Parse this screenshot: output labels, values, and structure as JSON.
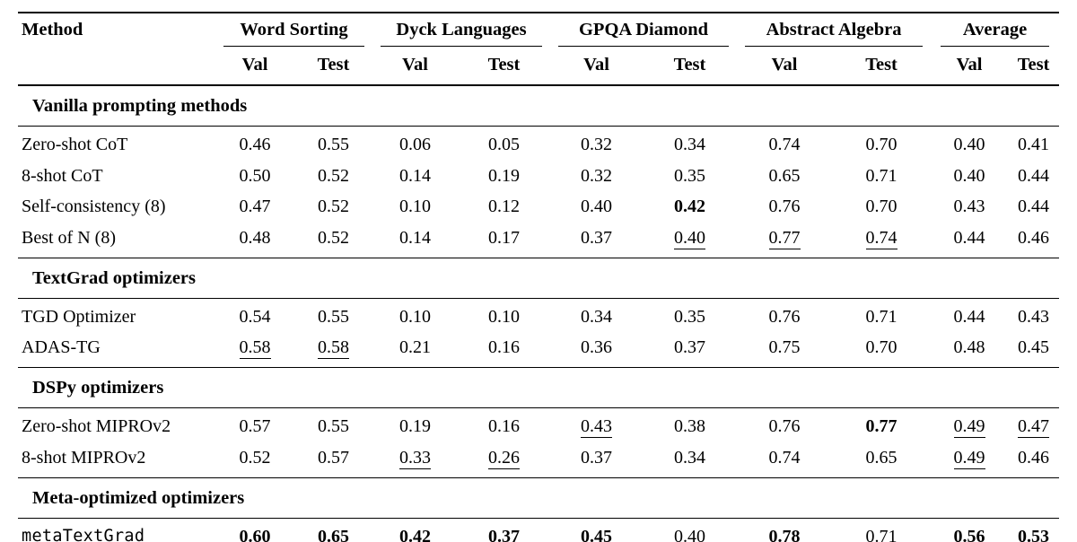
{
  "colors": {
    "background": "#ffffff",
    "text": "#000000",
    "rule": "#000000"
  },
  "header": {
    "method": "Method",
    "groups": [
      {
        "label": "Word Sorting"
      },
      {
        "label": "Dyck Languages"
      },
      {
        "label": "GPQA Diamond"
      },
      {
        "label": "Abstract Algebra"
      },
      {
        "label": "Average"
      }
    ],
    "val": "Val",
    "test": "Test"
  },
  "sections": [
    {
      "title": "Vanilla prompting methods",
      "rows": [
        {
          "method": "Zero-shot CoT",
          "mono": false,
          "cells": [
            {
              "t": "0.46"
            },
            {
              "t": "0.55"
            },
            {
              "t": "0.06"
            },
            {
              "t": "0.05"
            },
            {
              "t": "0.32"
            },
            {
              "t": "0.34"
            },
            {
              "t": "0.74"
            },
            {
              "t": "0.70"
            },
            {
              "t": "0.40"
            },
            {
              "t": "0.41"
            }
          ]
        },
        {
          "method": "8-shot CoT",
          "mono": false,
          "cells": [
            {
              "t": "0.50"
            },
            {
              "t": "0.52"
            },
            {
              "t": "0.14"
            },
            {
              "t": "0.19"
            },
            {
              "t": "0.32"
            },
            {
              "t": "0.35"
            },
            {
              "t": "0.65"
            },
            {
              "t": "0.71"
            },
            {
              "t": "0.40"
            },
            {
              "t": "0.44"
            }
          ]
        },
        {
          "method": "Self-consistency (8)",
          "mono": false,
          "cells": [
            {
              "t": "0.47"
            },
            {
              "t": "0.52"
            },
            {
              "t": "0.10"
            },
            {
              "t": "0.12"
            },
            {
              "t": "0.40"
            },
            {
              "t": "0.42",
              "b": true
            },
            {
              "t": "0.76"
            },
            {
              "t": "0.70"
            },
            {
              "t": "0.43"
            },
            {
              "t": "0.44"
            }
          ]
        },
        {
          "method": "Best of N (8)",
          "mono": false,
          "cells": [
            {
              "t": "0.48"
            },
            {
              "t": "0.52"
            },
            {
              "t": "0.14"
            },
            {
              "t": "0.17"
            },
            {
              "t": "0.37"
            },
            {
              "t": "0.40",
              "u": true
            },
            {
              "t": "0.77",
              "u": true
            },
            {
              "t": "0.74",
              "u": true
            },
            {
              "t": "0.44"
            },
            {
              "t": "0.46"
            }
          ]
        }
      ]
    },
    {
      "title": "TextGrad optimizers",
      "rows": [
        {
          "method": "TGD Optimizer",
          "mono": false,
          "cells": [
            {
              "t": "0.54"
            },
            {
              "t": "0.55"
            },
            {
              "t": "0.10"
            },
            {
              "t": "0.10"
            },
            {
              "t": "0.34"
            },
            {
              "t": "0.35"
            },
            {
              "t": "0.76"
            },
            {
              "t": "0.71"
            },
            {
              "t": "0.44"
            },
            {
              "t": "0.43"
            }
          ]
        },
        {
          "method": "ADAS-TG",
          "mono": false,
          "cells": [
            {
              "t": "0.58",
              "u": true
            },
            {
              "t": "0.58",
              "u": true
            },
            {
              "t": "0.21"
            },
            {
              "t": "0.16"
            },
            {
              "t": "0.36"
            },
            {
              "t": "0.37"
            },
            {
              "t": "0.75"
            },
            {
              "t": "0.70"
            },
            {
              "t": "0.48"
            },
            {
              "t": "0.45"
            }
          ]
        }
      ]
    },
    {
      "title": "DSPy optimizers",
      "rows": [
        {
          "method": "Zero-shot MIPROv2",
          "mono": false,
          "cells": [
            {
              "t": "0.57"
            },
            {
              "t": "0.55"
            },
            {
              "t": "0.19"
            },
            {
              "t": "0.16"
            },
            {
              "t": "0.43",
              "u": true
            },
            {
              "t": "0.38"
            },
            {
              "t": "0.76"
            },
            {
              "t": "0.77",
              "b": true
            },
            {
              "t": "0.49",
              "u": true
            },
            {
              "t": "0.47",
              "u": true
            }
          ]
        },
        {
          "method": "8-shot MIPROv2",
          "mono": false,
          "cells": [
            {
              "t": "0.52"
            },
            {
              "t": "0.57"
            },
            {
              "t": "0.33",
              "u": true
            },
            {
              "t": "0.26",
              "u": true
            },
            {
              "t": "0.37"
            },
            {
              "t": "0.34"
            },
            {
              "t": "0.74"
            },
            {
              "t": "0.65"
            },
            {
              "t": "0.49",
              "u": true
            },
            {
              "t": "0.46"
            }
          ]
        }
      ]
    },
    {
      "title": "Meta-optimized optimizers",
      "rows": [
        {
          "method": "metaTextGrad",
          "mono": true,
          "cells": [
            {
              "t": "0.60",
              "b": true
            },
            {
              "t": "0.65",
              "b": true
            },
            {
              "t": "0.42",
              "b": true
            },
            {
              "t": "0.37",
              "b": true
            },
            {
              "t": "0.45",
              "b": true
            },
            {
              "t": "0.40",
              "u": true
            },
            {
              "t": "0.78",
              "b": true
            },
            {
              "t": "0.71"
            },
            {
              "t": "0.56",
              "b": true
            },
            {
              "t": "0.53",
              "b": true
            }
          ]
        }
      ]
    }
  ]
}
